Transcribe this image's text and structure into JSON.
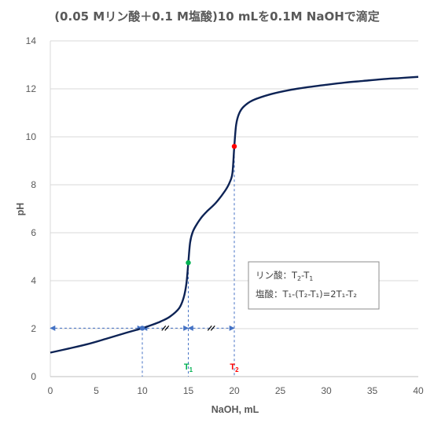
{
  "chart_data": {
    "type": "line",
    "title": "(0.05 Mリン酸＋0.1 M塩酸)10 mLを0.1M NaOHで滴定",
    "xlabel": "NaOH, mL",
    "ylabel": "pH",
    "xlim": [
      0,
      40
    ],
    "ylim": [
      0,
      14
    ],
    "x_ticks": [
      "0",
      "5",
      "10",
      "15",
      "20",
      "25",
      "30",
      "35",
      "40"
    ],
    "y_ticks": [
      "0",
      "2",
      "4",
      "6",
      "8",
      "10",
      "12",
      "14"
    ],
    "grid": "horizontal",
    "line_color": "#0d2355",
    "series": [
      {
        "x": [
          0,
          2,
          4,
          6,
          8,
          10,
          11,
          12,
          13,
          14,
          14.5,
          14.8,
          15,
          15.2,
          15.5,
          16,
          16.5,
          17,
          18,
          19,
          19.5,
          19.8,
          20,
          20.2,
          20.5,
          21,
          22,
          24,
          26,
          28,
          30,
          32,
          34,
          36,
          38,
          40
        ],
        "y": [
          1.0,
          1.17,
          1.35,
          1.57,
          1.8,
          2.02,
          2.15,
          2.3,
          2.5,
          2.85,
          3.3,
          3.9,
          4.75,
          5.6,
          6.05,
          6.4,
          6.67,
          6.88,
          7.25,
          7.75,
          8.1,
          8.5,
          9.6,
          10.5,
          10.95,
          11.25,
          11.52,
          11.78,
          11.95,
          12.07,
          12.17,
          12.26,
          12.33,
          12.4,
          12.45,
          12.5
        ]
      }
    ],
    "points": [
      {
        "name": "blue",
        "x": 10,
        "y": 2.02,
        "color": "#4472c4"
      },
      {
        "name": "green",
        "x": 15,
        "y": 4.75,
        "color": "#00b050"
      },
      {
        "name": "red",
        "x": 20,
        "y": 9.6,
        "color": "#ff0000"
      }
    ],
    "markers": [
      {
        "label": "T",
        "sub": "1",
        "x": 15,
        "color": "#00b050"
      },
      {
        "label": "T",
        "sub": "2",
        "x": 20,
        "color": "#ff0000"
      }
    ],
    "annotation": {
      "line1": {
        "prefix": "リン酸：",
        "t2": "T",
        "s2": "2",
        "dash": "-",
        "t1": "T",
        "s1": "1"
      },
      "line2": {
        "text": "塩酸：T₁-(T₂-T₁)=2T₁-T₂"
      }
    }
  }
}
